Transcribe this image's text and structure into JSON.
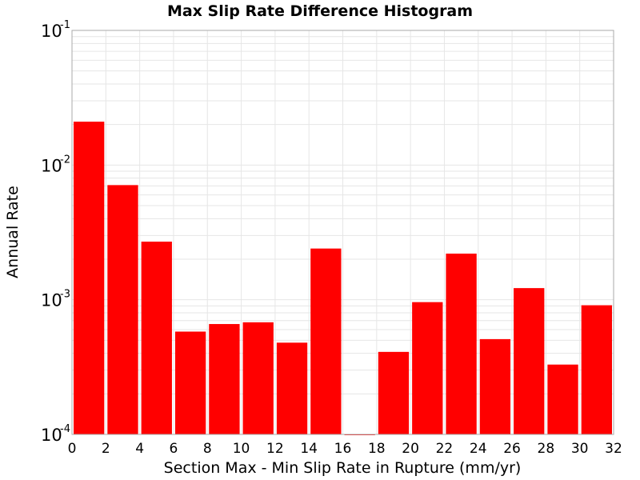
{
  "chart_data": {
    "type": "bar",
    "title": "Max Slip Rate Difference Histogram",
    "xlabel": "Section Max - Min Slip Rate in Rupture (mm/yr)",
    "ylabel": "Annual Rate",
    "xlim": [
      0,
      32
    ],
    "x_ticks": [
      "0",
      "2",
      "4",
      "6",
      "8",
      "10",
      "12",
      "14",
      "16",
      "18",
      "20",
      "22",
      "24",
      "26",
      "28",
      "30",
      "32"
    ],
    "y_scale": "log",
    "ylim": [
      0.0001,
      0.1
    ],
    "y_ticks": [
      {
        "base": "10",
        "exp": "-4"
      },
      {
        "base": "10",
        "exp": "-3"
      },
      {
        "base": "10",
        "exp": "-2"
      },
      {
        "base": "10",
        "exp": "-1"
      }
    ],
    "bin_width": 2,
    "bins": [
      {
        "x": 1,
        "value": 0.021
      },
      {
        "x": 3,
        "value": 0.0071
      },
      {
        "x": 5,
        "value": 0.0027
      },
      {
        "x": 7,
        "value": 0.00058
      },
      {
        "x": 9,
        "value": 0.00066
      },
      {
        "x": 11,
        "value": 0.00068
      },
      {
        "x": 13,
        "value": 0.00048
      },
      {
        "x": 15,
        "value": 0.0024
      },
      {
        "x": 17,
        "value": 0.0001
      },
      {
        "x": 19,
        "value": 0.00041
      },
      {
        "x": 21,
        "value": 0.00096
      },
      {
        "x": 23,
        "value": 0.0022
      },
      {
        "x": 25,
        "value": 0.00051
      },
      {
        "x": 27,
        "value": 0.00122
      },
      {
        "x": 29,
        "value": 0.00033
      },
      {
        "x": 31,
        "value": 0.00091
      }
    ],
    "colors": {
      "bar": "#ff0000",
      "grid": "#e6e6e6",
      "frame": "#aaaaaa"
    },
    "grid": true,
    "legend": "none"
  }
}
